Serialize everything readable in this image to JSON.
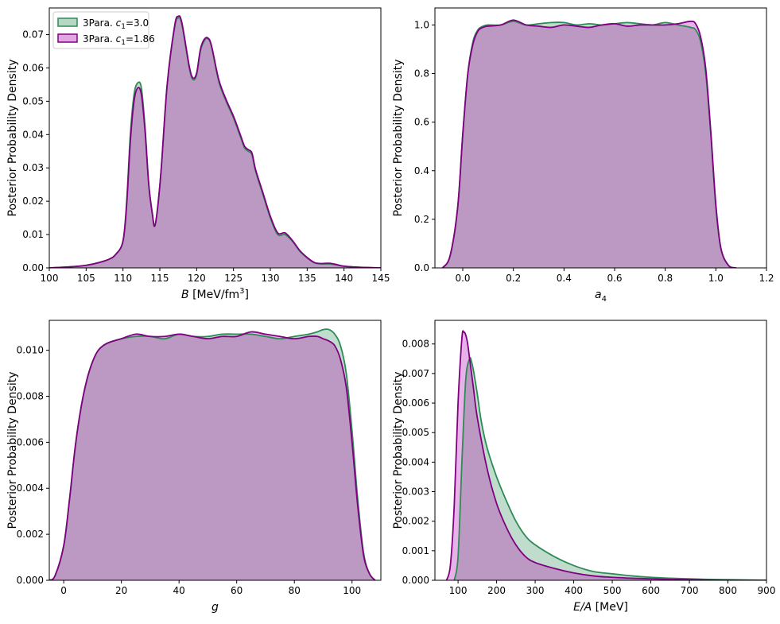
{
  "series_styles": {
    "green": {
      "name_prefix": "3Para. ",
      "sub_sym": "c",
      "sub": "1",
      "value": "=3.0",
      "line": "#2e8b57",
      "fill": "#2e8b57",
      "fill_opacity": 0.3
    },
    "purple": {
      "name_prefix": "3Para. ",
      "sub_sym": "c",
      "sub": "1",
      "value": "=1.86",
      "line": "#800080",
      "fill": "#b000b0",
      "fill_opacity": 0.3
    }
  },
  "chart_data": [
    {
      "type": "area",
      "ylabel": "Posterior Probability Density",
      "xlabel": {
        "italic": "B",
        "rest": " [MeV/fm",
        "sup": "3",
        "end": "]"
      },
      "xlim": [
        100,
        145
      ],
      "ylim": [
        0,
        0.078
      ],
      "xticks": [
        100,
        105,
        110,
        115,
        120,
        125,
        130,
        135,
        140,
        145
      ],
      "yticks": [
        0.0,
        0.01,
        0.02,
        0.03,
        0.04,
        0.05,
        0.06,
        0.07
      ],
      "ytick_decimals": 2,
      "legend": "top-left",
      "series": [
        {
          "key": "green",
          "x": [
            100,
            104,
            106,
            108,
            109,
            110,
            110.5,
            111,
            111.5,
            112,
            112.5,
            113,
            113.5,
            114,
            114.3,
            114.7,
            115.2,
            116,
            117,
            117.5,
            118,
            119,
            119.5,
            120,
            120.5,
            121,
            121.5,
            122,
            123,
            124,
            125,
            126,
            126.5,
            127,
            127.5,
            128,
            129,
            130,
            131,
            132,
            133,
            134,
            135,
            136,
            137,
            138,
            139,
            140,
            142,
            145
          ],
          "y": [
            0,
            0.0005,
            0.0012,
            0.0025,
            0.004,
            0.008,
            0.02,
            0.04,
            0.052,
            0.0555,
            0.054,
            0.042,
            0.025,
            0.016,
            0.0125,
            0.018,
            0.03,
            0.055,
            0.072,
            0.075,
            0.073,
            0.06,
            0.0565,
            0.058,
            0.065,
            0.068,
            0.0688,
            0.0665,
            0.056,
            0.05,
            0.045,
            0.039,
            0.036,
            0.035,
            0.034,
            0.029,
            0.022,
            0.015,
            0.01,
            0.01,
            0.008,
            0.005,
            0.003,
            0.0015,
            0.0012,
            0.0012,
            0.0009,
            0.0005,
            0.0002,
            0
          ]
        },
        {
          "key": "purple",
          "x": [
            100,
            104,
            106,
            108,
            109,
            110,
            110.5,
            111,
            111.5,
            112,
            112.5,
            113,
            113.5,
            114,
            114.3,
            114.7,
            115.2,
            116,
            117,
            117.5,
            118,
            119,
            119.5,
            120,
            120.5,
            121,
            121.5,
            122,
            123,
            124,
            125,
            126,
            126.5,
            127,
            127.5,
            128,
            129,
            130,
            131,
            132,
            133,
            134,
            135,
            136,
            137,
            138,
            139,
            140,
            142,
            145
          ],
          "y": [
            0,
            0.0005,
            0.0012,
            0.0025,
            0.004,
            0.008,
            0.019,
            0.038,
            0.05,
            0.054,
            0.052,
            0.041,
            0.025,
            0.016,
            0.0125,
            0.018,
            0.03,
            0.055,
            0.0725,
            0.0755,
            0.0735,
            0.0605,
            0.057,
            0.0585,
            0.0655,
            0.0685,
            0.069,
            0.0668,
            0.0565,
            0.0505,
            0.0455,
            0.0395,
            0.0365,
            0.0355,
            0.0345,
            0.0295,
            0.0225,
            0.0155,
            0.0105,
            0.0105,
            0.0082,
            0.0052,
            0.0031,
            0.0016,
            0.0013,
            0.0014,
            0.001,
            0.0005,
            0.0002,
            0
          ]
        }
      ]
    },
    {
      "type": "area",
      "ylabel": "Posterior Probability Density",
      "xlabel": {
        "italic": "a",
        "sub": "4"
      },
      "xlim": [
        -0.11,
        1.2
      ],
      "ylim": [
        0,
        1.07
      ],
      "xticks": [
        0.0,
        0.2,
        0.4,
        0.6,
        0.8,
        1.0,
        1.2
      ],
      "yticks": [
        0.0,
        0.2,
        0.4,
        0.6,
        0.8,
        1.0
      ],
      "ytick_decimals": 1,
      "xtick_decimals": 1,
      "series": [
        {
          "key": "green",
          "x": [
            -0.08,
            -0.05,
            -0.02,
            0.0,
            0.02,
            0.04,
            0.06,
            0.08,
            0.1,
            0.15,
            0.2,
            0.25,
            0.3,
            0.35,
            0.4,
            0.45,
            0.5,
            0.55,
            0.6,
            0.65,
            0.7,
            0.75,
            0.8,
            0.85,
            0.9,
            0.92,
            0.94,
            0.96,
            0.98,
            1.0,
            1.02,
            1.05,
            1.08
          ],
          "y": [
            0,
            0.05,
            0.25,
            0.55,
            0.8,
            0.93,
            0.98,
            0.995,
            1.0,
            1.0,
            1.015,
            1.0,
            1.005,
            1.01,
            1.01,
            1.0,
            1.005,
            1.0,
            1.005,
            1.01,
            1.005,
            1.0,
            1.01,
            1.0,
            0.99,
            0.98,
            0.93,
            0.8,
            0.55,
            0.25,
            0.08,
            0.01,
            0
          ]
        },
        {
          "key": "purple",
          "x": [
            -0.08,
            -0.05,
            -0.02,
            0.0,
            0.02,
            0.04,
            0.06,
            0.08,
            0.1,
            0.15,
            0.2,
            0.25,
            0.3,
            0.35,
            0.4,
            0.45,
            0.5,
            0.55,
            0.6,
            0.65,
            0.7,
            0.75,
            0.8,
            0.85,
            0.9,
            0.92,
            0.94,
            0.96,
            0.98,
            1.0,
            1.02,
            1.05,
            1.08
          ],
          "y": [
            0,
            0.05,
            0.25,
            0.55,
            0.8,
            0.92,
            0.975,
            0.99,
            0.995,
            1.0,
            1.02,
            1.0,
            0.995,
            0.99,
            1.0,
            0.995,
            0.99,
            1.0,
            1.005,
            0.995,
            1.0,
            1.0,
            1.0,
            1.005,
            1.015,
            1.005,
            0.95,
            0.82,
            0.56,
            0.26,
            0.08,
            0.01,
            0
          ]
        }
      ]
    },
    {
      "type": "area",
      "ylabel": "Posterior Probability Density",
      "xlabel": {
        "italic": "g"
      },
      "xlim": [
        -5,
        110
      ],
      "ylim": [
        0,
        0.0113
      ],
      "xticks": [
        0,
        20,
        40,
        60,
        80,
        100
      ],
      "yticks": [
        0.0,
        0.002,
        0.004,
        0.006,
        0.008,
        0.01
      ],
      "ytick_decimals": 3,
      "series": [
        {
          "key": "green",
          "x": [
            -5,
            -3,
            0,
            2,
            4,
            6,
            8,
            10,
            12,
            15,
            20,
            25,
            30,
            35,
            40,
            45,
            50,
            55,
            60,
            65,
            70,
            75,
            80,
            85,
            88,
            90,
            92,
            94,
            96,
            98,
            100,
            102,
            104,
            106,
            108
          ],
          "y": [
            0,
            0.0002,
            0.0015,
            0.0035,
            0.0058,
            0.0075,
            0.0087,
            0.0095,
            0.01,
            0.0103,
            0.0105,
            0.0106,
            0.0106,
            0.0105,
            0.0107,
            0.0106,
            0.0106,
            0.0107,
            0.0107,
            0.0107,
            0.0106,
            0.0105,
            0.0106,
            0.0107,
            0.0108,
            0.0109,
            0.0109,
            0.0107,
            0.0102,
            0.009,
            0.0065,
            0.0035,
            0.0012,
            0.0003,
            0
          ]
        },
        {
          "key": "purple",
          "x": [
            -5,
            -3,
            0,
            2,
            4,
            6,
            8,
            10,
            12,
            15,
            20,
            25,
            30,
            35,
            40,
            45,
            50,
            55,
            60,
            65,
            70,
            75,
            80,
            85,
            88,
            90,
            92,
            94,
            96,
            98,
            100,
            102,
            104,
            106,
            108
          ],
          "y": [
            0,
            0.0002,
            0.0015,
            0.0035,
            0.0058,
            0.0075,
            0.0087,
            0.0095,
            0.01,
            0.0103,
            0.0105,
            0.0107,
            0.0106,
            0.0106,
            0.0107,
            0.0106,
            0.0105,
            0.0106,
            0.0106,
            0.0108,
            0.0107,
            0.0106,
            0.0105,
            0.0106,
            0.0106,
            0.0105,
            0.0104,
            0.0102,
            0.0096,
            0.0084,
            0.006,
            0.0032,
            0.0011,
            0.0003,
            0
          ]
        }
      ]
    },
    {
      "type": "area",
      "ylabel": "Posterior Probability Density",
      "xlabel": {
        "italic": "E/A",
        "rest": " [MeV]"
      },
      "xlim": [
        40,
        900
      ],
      "ylim": [
        0,
        0.0088
      ],
      "xticks": [
        100,
        200,
        300,
        400,
        500,
        600,
        700,
        800,
        900
      ],
      "yticks": [
        0.0,
        0.001,
        0.002,
        0.003,
        0.004,
        0.005,
        0.006,
        0.007,
        0.008
      ],
      "ytick_decimals": 3,
      "series": [
        {
          "key": "green",
          "x": [
            90,
            100,
            110,
            120,
            130,
            135,
            140,
            150,
            160,
            175,
            200,
            225,
            250,
            275,
            300,
            350,
            400,
            450,
            500,
            550,
            600,
            650,
            700,
            750,
            800,
            850,
            900
          ],
          "y": [
            0,
            0.0008,
            0.004,
            0.0068,
            0.0075,
            0.0074,
            0.0071,
            0.0063,
            0.0054,
            0.0045,
            0.0035,
            0.0027,
            0.002,
            0.0015,
            0.0012,
            0.0008,
            0.0005,
            0.0003,
            0.00022,
            0.00015,
            0.0001,
            7e-05,
            5e-05,
            3e-05,
            2e-05,
            1e-05,
            0
          ]
        },
        {
          "key": "purple",
          "x": [
            70,
            80,
            90,
            100,
            110,
            115,
            120,
            125,
            130,
            140,
            150,
            175,
            200,
            225,
            250,
            275,
            300,
            350,
            400,
            450,
            500,
            550,
            600,
            650,
            700,
            750,
            800,
            850,
            900
          ],
          "y": [
            0,
            0.0005,
            0.0025,
            0.006,
            0.0082,
            0.0084,
            0.0083,
            0.008,
            0.0075,
            0.0065,
            0.0055,
            0.0038,
            0.0026,
            0.0018,
            0.0012,
            0.0008,
            0.0006,
            0.0004,
            0.00025,
            0.00015,
            0.0001,
            7e-05,
            5e-05,
            3e-05,
            2e-05,
            1e-05,
            5e-06,
            2e-06,
            0
          ]
        }
      ]
    }
  ]
}
